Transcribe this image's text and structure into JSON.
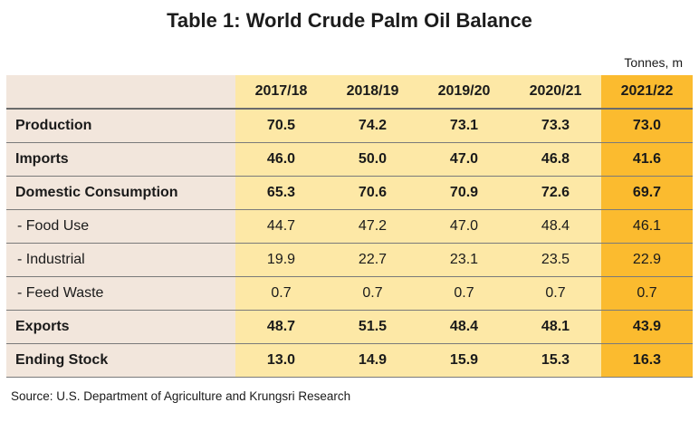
{
  "title": "Table 1: World Crude Palm Oil Balance",
  "units": "Tonnes, m",
  "columns": [
    "2017/18",
    "2018/19",
    "2019/20",
    "2020/21",
    "2021/22"
  ],
  "highlight_color": "#fbbb2f",
  "base_color": "#fde8a6",
  "label_color": "#f2e6dc",
  "rows": [
    {
      "label": "Production",
      "values": [
        "70.5",
        "74.2",
        "73.1",
        "73.3",
        "73.0"
      ]
    },
    {
      "label": "Imports",
      "values": [
        "46.0",
        "50.0",
        "47.0",
        "46.8",
        "41.6"
      ]
    },
    {
      "label": "Domestic Consumption",
      "values": [
        "65.3",
        "70.6",
        "70.9",
        "72.6",
        "69.7"
      ]
    },
    {
      "label": " - Food Use",
      "values": [
        "44.7",
        "47.2",
        "47.0",
        "48.4",
        "46.1"
      ]
    },
    {
      "label": " - Industrial",
      "values": [
        "19.9",
        "22.7",
        "23.1",
        "23.5",
        "22.9"
      ]
    },
    {
      "label": " - Feed Waste",
      "values": [
        "0.7",
        "0.7",
        "0.7",
        "0.7",
        "0.7"
      ]
    },
    {
      "label": "Exports",
      "values": [
        "48.7",
        "51.5",
        "48.4",
        "48.1",
        "43.9"
      ]
    },
    {
      "label": "Ending Stock",
      "values": [
        "13.0",
        "14.9",
        "15.9",
        "15.3",
        "16.3"
      ]
    }
  ],
  "source": "Source: U.S. Department of Agriculture and Krungsri Research"
}
